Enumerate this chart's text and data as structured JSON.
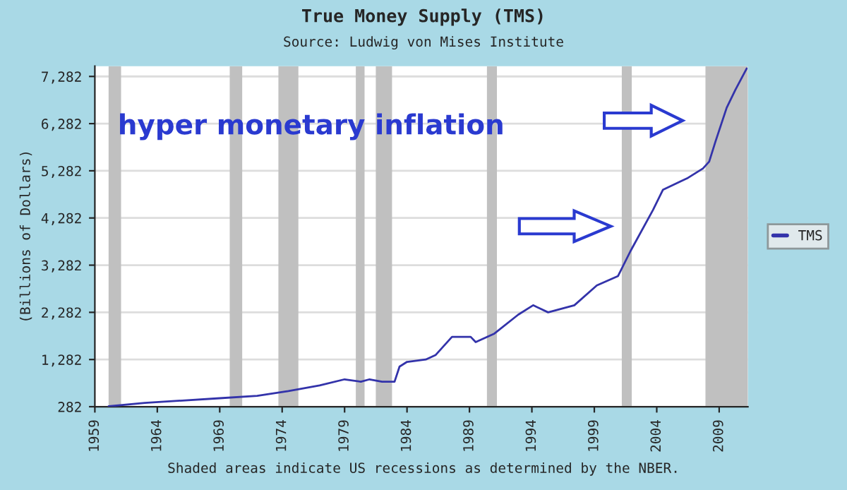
{
  "chart_data": {
    "type": "line",
    "title": "True Money Supply (TMS)",
    "subtitle": "Source: Ludwig von Mises Institute",
    "ylabel": "(Billions of Dollars)",
    "annotations": [
      "hyper monetary inflation",
      "Shaded areas indicate US recessions as determined by the NBER."
    ],
    "x": [
      1960.1,
      1963,
      1966,
      1969,
      1972,
      1974.5,
      1977,
      1979,
      1980.3,
      1981,
      1982,
      1983.0,
      1983.4,
      1984,
      1985.5,
      1986.3,
      1987.6,
      1989.1,
      1989.5,
      1991.0,
      1992.9,
      1994.1,
      1995.3,
      1997.4,
      1999.2,
      2000.9,
      2001.9,
      2003.7,
      2004.5,
      2006.5,
      2007.7,
      2008.2,
      2008.7,
      2009.6,
      2010.3,
      2011.2
    ],
    "series": [
      {
        "name": "TMS",
        "color": "#3333aa",
        "values": [
          290,
          362,
          412,
          462,
          512,
          612,
          732,
          862,
          812,
          862,
          812,
          812,
          1132,
          1232,
          1282,
          1380,
          1762,
          1762,
          1652,
          1832,
          2232,
          2432,
          2282,
          2432,
          2852,
          3052,
          3582,
          4452,
          4882,
          5132,
          5332,
          5477,
          5900,
          6618,
          7000,
          7450
        ]
      }
    ],
    "xlim": [
      1959,
      2011.3
    ],
    "ylim": [
      282,
      7500
    ],
    "xticks": [
      1959,
      1964,
      1969,
      1974,
      1979,
      1984,
      1989,
      1994,
      1999,
      2004,
      2009
    ],
    "yticks": [
      {
        "value": 282,
        "label": "282"
      },
      {
        "value": 1282,
        "label": "1,282"
      },
      {
        "value": 2282,
        "label": "2,282"
      },
      {
        "value": 3282,
        "label": "3,282"
      },
      {
        "value": 4282,
        "label": "4,282"
      },
      {
        "value": 5282,
        "label": "5,282"
      },
      {
        "value": 6282,
        "label": "6,282"
      },
      {
        "value": 7282,
        "label": "7,282"
      }
    ],
    "bands": [
      {
        "axis": "x",
        "from": 1960.1,
        "to": 1961.1,
        "color": "#c0c0c0"
      },
      {
        "axis": "x",
        "from": 1969.8,
        "to": 1970.8,
        "color": "#c0c0c0"
      },
      {
        "axis": "x",
        "from": 1973.7,
        "to": 1975.3,
        "color": "#c0c0c0"
      },
      {
        "axis": "x",
        "from": 1979.9,
        "to": 1980.6,
        "color": "#c0c0c0"
      },
      {
        "axis": "x",
        "from": 1981.5,
        "to": 1982.8,
        "color": "#c0c0c0"
      },
      {
        "axis": "x",
        "from": 1990.4,
        "to": 1991.2,
        "color": "#c0c0c0"
      },
      {
        "axis": "x",
        "from": 2001.2,
        "to": 2002.0,
        "color": "#c0c0c0"
      },
      {
        "axis": "x",
        "from": 2007.9,
        "to": 2011.3,
        "color": "#c0c0c0"
      }
    ],
    "grid": "y",
    "legend": "right",
    "marker": "none",
    "line_style": "solid"
  }
}
